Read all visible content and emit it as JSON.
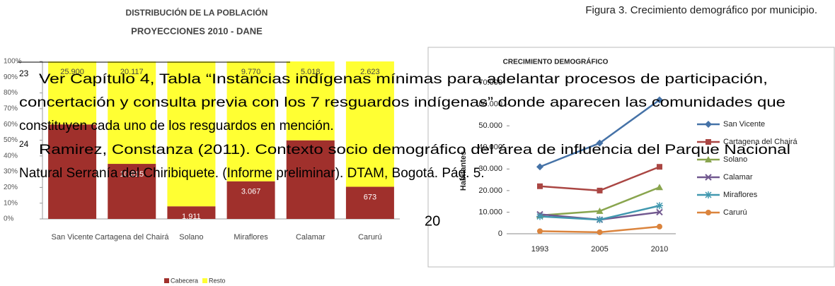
{
  "caption": "Figura 3. Crecimiento demográfico por municipio.",
  "page_number": "20",
  "footnotes": [
    {
      "number": "23",
      "lines": [
        "Ver Capítulo 4, Tabla “Instancias indígenas mínimas para adelantar procesos de participación,",
        "concertación y consulta previa con los 7 resguardos indígenas” donde aparecen las comunidades que",
        "constituyen cada uno de los resguardos en mención."
      ]
    },
    {
      "number": "24",
      "lines": [
        "Ramirez, Constanza (2011). Contexto socio demográfico del área de influencia del Parque Nacional",
        "Natural Serranía del Chiribiquete. (Informe preliminar). DTAM, Bogotá. Pág. 5."
      ]
    }
  ],
  "chart_data": [
    {
      "type": "stacked100",
      "title": "DISTRIBUCIÓN DE LA POBLACIÓN",
      "subtitle": "PROYECCIONES 2010 - DANE",
      "categories": [
        "San Vicente",
        "Cartagena del Chairá",
        "Solano",
        "Miraflores",
        "Calamar",
        "Carurú"
      ],
      "series": [
        {
          "name": "Cabecera",
          "color": "#a0302c",
          "values": [
            38850,
            10815,
            1911,
            3067,
            5000,
            673
          ],
          "value_labels": [
            null,
            "10.815",
            "1.911",
            "3.067",
            null,
            "673"
          ]
        },
        {
          "name": "Resto",
          "color": "#ffff33",
          "values": [
            25900,
            20117,
            21990,
            9770,
            5018,
            2623
          ],
          "value_labels": [
            "25.900",
            "20.117",
            null,
            "9.770",
            "5.018",
            "2.623"
          ]
        }
      ],
      "ylim": [
        0,
        100
      ],
      "yticks": [
        {
          "value": 0,
          "label": "0%"
        },
        {
          "value": 10,
          "label": "10%"
        },
        {
          "value": 20,
          "label": "20%"
        },
        {
          "value": 30,
          "label": "30%"
        },
        {
          "value": 40,
          "label": "40%"
        },
        {
          "value": 50,
          "label": "50%"
        },
        {
          "value": 60,
          "label": "60%"
        },
        {
          "value": 70,
          "label": "70%"
        },
        {
          "value": 80,
          "label": "80%"
        },
        {
          "value": 90,
          "label": "90%"
        },
        {
          "value": 100,
          "label": "100%"
        }
      ],
      "legend": "bottom"
    },
    {
      "type": "line",
      "title": "CRECIMIENTO DEMOGRÁFICO",
      "y_label": "Habitantes",
      "categories": [
        "1993",
        "2005",
        "2010"
      ],
      "series": [
        {
          "name": "San Vicente",
          "color": "#4572a7",
          "marker": "diamond",
          "values": [
            31000,
            42000,
            62000
          ]
        },
        {
          "name": "Cartagena del Chairá",
          "color": "#aa4643",
          "marker": "square",
          "values": [
            22000,
            20000,
            31000
          ]
        },
        {
          "name": "Solano",
          "color": "#89a54e",
          "marker": "triangle",
          "values": [
            8500,
            10500,
            21500
          ]
        },
        {
          "name": "Calamar",
          "color": "#71588f",
          "marker": "x",
          "values": [
            9000,
            6500,
            10000
          ]
        },
        {
          "name": "Miraflores",
          "color": "#4198af",
          "marker": "star",
          "values": [
            8000,
            6500,
            13000
          ]
        },
        {
          "name": "Carurú",
          "color": "#db843d",
          "marker": "circle",
          "values": [
            1200,
            700,
            3300
          ]
        }
      ],
      "ylim": [
        0,
        70000
      ],
      "yticks": [
        0,
        {
          "value": 10000,
          "label": "10.000"
        },
        {
          "value": 20000,
          "label": "20.000"
        },
        {
          "value": 30000,
          "label": "30.000"
        },
        {
          "value": 40000,
          "label": "40.000"
        },
        {
          "value": 50000,
          "label": "50.000"
        },
        {
          "value": 60000,
          "label": "60.000"
        },
        {
          "value": 70000,
          "label": "70.000"
        }
      ],
      "legend": "right"
    }
  ]
}
